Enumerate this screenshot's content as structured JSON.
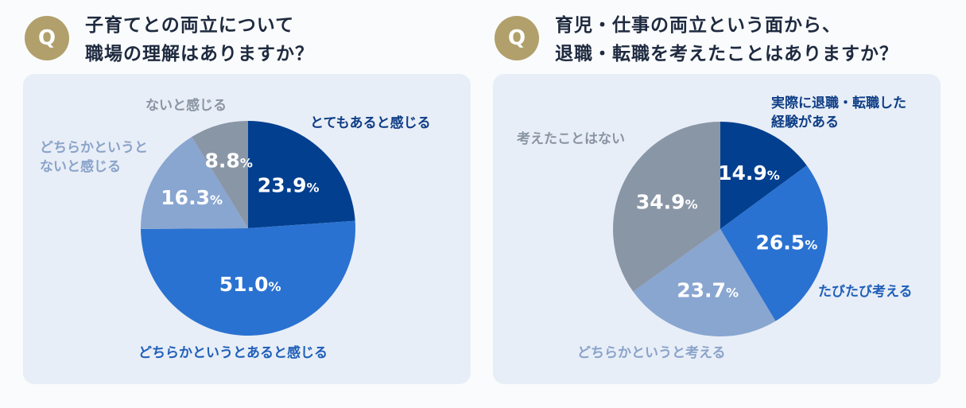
{
  "colors": {
    "badge": "#b1a06b",
    "title": "#1e2a3f",
    "card_bg": "#e8eef7"
  },
  "chart_data": [
    {
      "type": "pie",
      "badge": "Q",
      "title_lines": [
        "子育てとの両立について",
        "職場の理解はありますか？"
      ],
      "unit": "%",
      "slices": [
        {
          "label": "とてもあると感じる",
          "value": 23.9,
          "value_text": "23.9",
          "color": "#033f8f",
          "label_color": "#0e3d85"
        },
        {
          "label": "どちらかというとあると感じる",
          "value": 51.0,
          "value_text": "51.0",
          "color": "#2a72d1",
          "label_color": "#1f5fb8"
        },
        {
          "label": "どちらかというとないと感じる",
          "label_lines": [
            "どちらかというと",
            "ないと感じる"
          ],
          "value": 16.3,
          "value_text": "16.3",
          "color": "#89a6d1",
          "label_color": "#8aa3c9"
        },
        {
          "label": "ないと感じる",
          "value": 8.8,
          "value_text": "8.8",
          "color": "#8996a6",
          "label_color": "#8a95a3"
        }
      ]
    },
    {
      "type": "pie",
      "badge": "Q",
      "title_lines": [
        "育児・仕事の両立という面から、",
        "退職・転職を考えたことはありますか？"
      ],
      "unit": "%",
      "slices": [
        {
          "label": "実際に退職・転職した経験がある",
          "label_lines": [
            "実際に退職・転職した",
            "経験がある"
          ],
          "value": 14.9,
          "value_text": "14.9",
          "color": "#033f8f",
          "label_color": "#0e3d85"
        },
        {
          "label": "たびたび考える",
          "value": 26.5,
          "value_text": "26.5",
          "color": "#2a72d1",
          "label_color": "#1f5fb8"
        },
        {
          "label": "どちらかというと考える",
          "value": 23.7,
          "value_text": "23.7",
          "color": "#89a6d1",
          "label_color": "#8aa3c9"
        },
        {
          "label": "考えたことはない",
          "value": 34.9,
          "value_text": "34.9",
          "color": "#8996a6",
          "label_color": "#8a95a3"
        }
      ]
    }
  ]
}
